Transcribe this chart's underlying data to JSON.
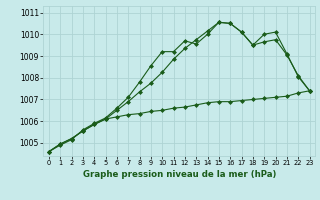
{
  "background_color": "#c8eaea",
  "line_color": "#1a5c1a",
  "grid_color": "#aed4d4",
  "title": "Graphe pression niveau de la mer (hPa)",
  "xlim": [
    -0.5,
    23.5
  ],
  "ylim": [
    1004.4,
    1011.3
  ],
  "yticks": [
    1005,
    1006,
    1007,
    1008,
    1009,
    1010,
    1011
  ],
  "xticks": [
    0,
    1,
    2,
    3,
    4,
    5,
    6,
    7,
    8,
    9,
    10,
    11,
    12,
    13,
    14,
    15,
    16,
    17,
    18,
    19,
    20,
    21,
    22,
    23
  ],
  "series1": [
    1004.6,
    1004.9,
    1005.15,
    1005.6,
    1005.9,
    1006.15,
    1006.6,
    1007.1,
    1007.8,
    1008.55,
    1009.2,
    1009.2,
    1009.7,
    1009.55,
    1010.0,
    1010.55,
    1010.5,
    1010.1,
    1009.5,
    1010.0,
    1010.1,
    1009.1,
    1008.05,
    1007.4
  ],
  "series2": [
    1004.6,
    1004.95,
    1005.2,
    1005.55,
    1005.85,
    1006.1,
    1006.2,
    1006.3,
    1006.35,
    1006.45,
    1006.5,
    1006.6,
    1006.65,
    1006.75,
    1006.85,
    1006.9,
    1006.9,
    1006.95,
    1007.0,
    1007.05,
    1007.1,
    1007.15,
    1007.3,
    1007.4
  ],
  "series3": [
    1004.6,
    1004.95,
    1005.2,
    1005.55,
    1005.85,
    1006.1,
    1006.5,
    1006.9,
    1007.35,
    1007.75,
    1008.25,
    1008.85,
    1009.35,
    1009.75,
    1010.15,
    1010.55,
    1010.5,
    1010.1,
    1009.5,
    1009.65,
    1009.75,
    1009.05,
    1008.1,
    1007.4
  ]
}
